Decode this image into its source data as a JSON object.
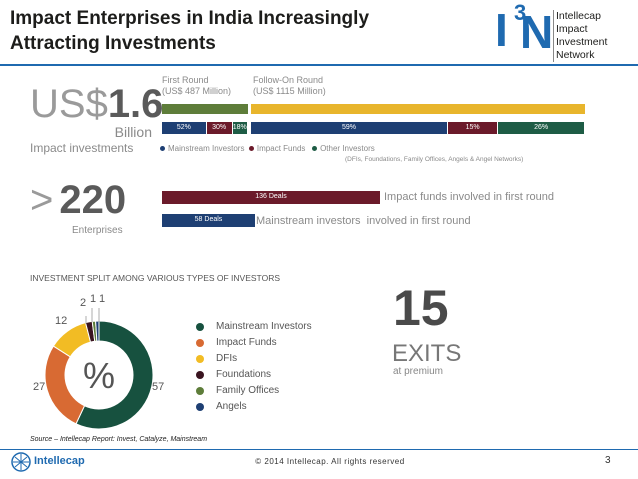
{
  "header": {
    "title_line1": "Impact Enterprises in India Increasingly",
    "title_line2": "Attracting Investments",
    "logo_letter_i": "I",
    "logo_superscript": "3",
    "logo_letter_n": "N",
    "logo_line1": "Intellecap",
    "logo_line2": "Impact Investment",
    "logo_line3": "Network"
  },
  "top_section": {
    "currency_prefix": "US$",
    "amount": "1.6",
    "unit": "Billion",
    "caption": "Impact investments",
    "first_round_label": "First Round",
    "first_round_value": "(US$ 487 Million)",
    "followon_label": "Follow-On Round",
    "followon_value": "(US$ 1115 Million)",
    "legend": {
      "mainstream": "Mainstream Investors",
      "impact": "Impact Funds",
      "other": "Other Investors",
      "other_note": "(DFIs, Foundations, Family Offices, Angels & Angel Networks)"
    },
    "enterprises_prefix": ">",
    "enterprises_count": "220",
    "enterprises_label": "Enterprises"
  },
  "deals_section": {
    "impact_deals_label": "136 Deals",
    "impact_deals_text": "Impact funds involved in first round",
    "mainstream_deals_label": "58 Deals",
    "mainstream_deals_text": "Mainstream investors  involved in first round"
  },
  "split_section": {
    "heading": "INVESTMENT SPLIT AMONG VARIOUS TYPES OF INVESTORS",
    "center_symbol": "%",
    "exits_count": "15",
    "exits_label": "EXITS",
    "exits_sub": "at premium"
  },
  "colors": {
    "mainstream": "#1e3f73",
    "impact": "#6b1a2a",
    "other": "#1e5c45",
    "olive": "#5e7d3a",
    "gold": "#e8b52c",
    "donut_mainstream": "#17513f",
    "donut_impact": "#d86a33",
    "donut_dfi": "#f2bc24",
    "donut_foundations": "#3a1420",
    "donut_family": "#5e7d3a",
    "donut_angels": "#1e3f73",
    "brand_blue": "#1f6ab0"
  },
  "chart_data": [
    {
      "type": "bar",
      "title": "",
      "categories": [
        "First Round",
        "Follow-On Round"
      ],
      "series": [
        {
          "name": "Mainstream Investors",
          "values": [
            52,
            59
          ],
          "labels": [
            "52%",
            "59%"
          ]
        },
        {
          "name": "Impact Funds",
          "values": [
            30,
            15
          ],
          "labels": [
            "30%",
            "15%"
          ]
        },
        {
          "name": "Other Investors",
          "values": [
            18,
            26
          ],
          "labels": [
            "18%",
            "26%"
          ]
        }
      ],
      "totals": [
        487,
        1115
      ]
    },
    {
      "type": "bar",
      "title": "",
      "categories": [
        "136 Deals",
        "58 Deals"
      ],
      "values": [
        136,
        58
      ]
    },
    {
      "type": "pie",
      "title": "INVESTMENT SPLIT AMONG VARIOUS TYPES OF INVESTORS",
      "categories": [
        "Mainstream Investors",
        "Impact Funds",
        "DFIs",
        "Foundations",
        "Family Offices",
        "Angels"
      ],
      "values": [
        57,
        27,
        12,
        2,
        1,
        1
      ],
      "legend_position": "right"
    }
  ],
  "footer": {
    "source": "Source – Intellecap Report: Invest, Catalyze, Mainstream",
    "copyright": "© 2014 Intellecap. All rights reserved",
    "page": "3",
    "brand": "Intellecap"
  }
}
